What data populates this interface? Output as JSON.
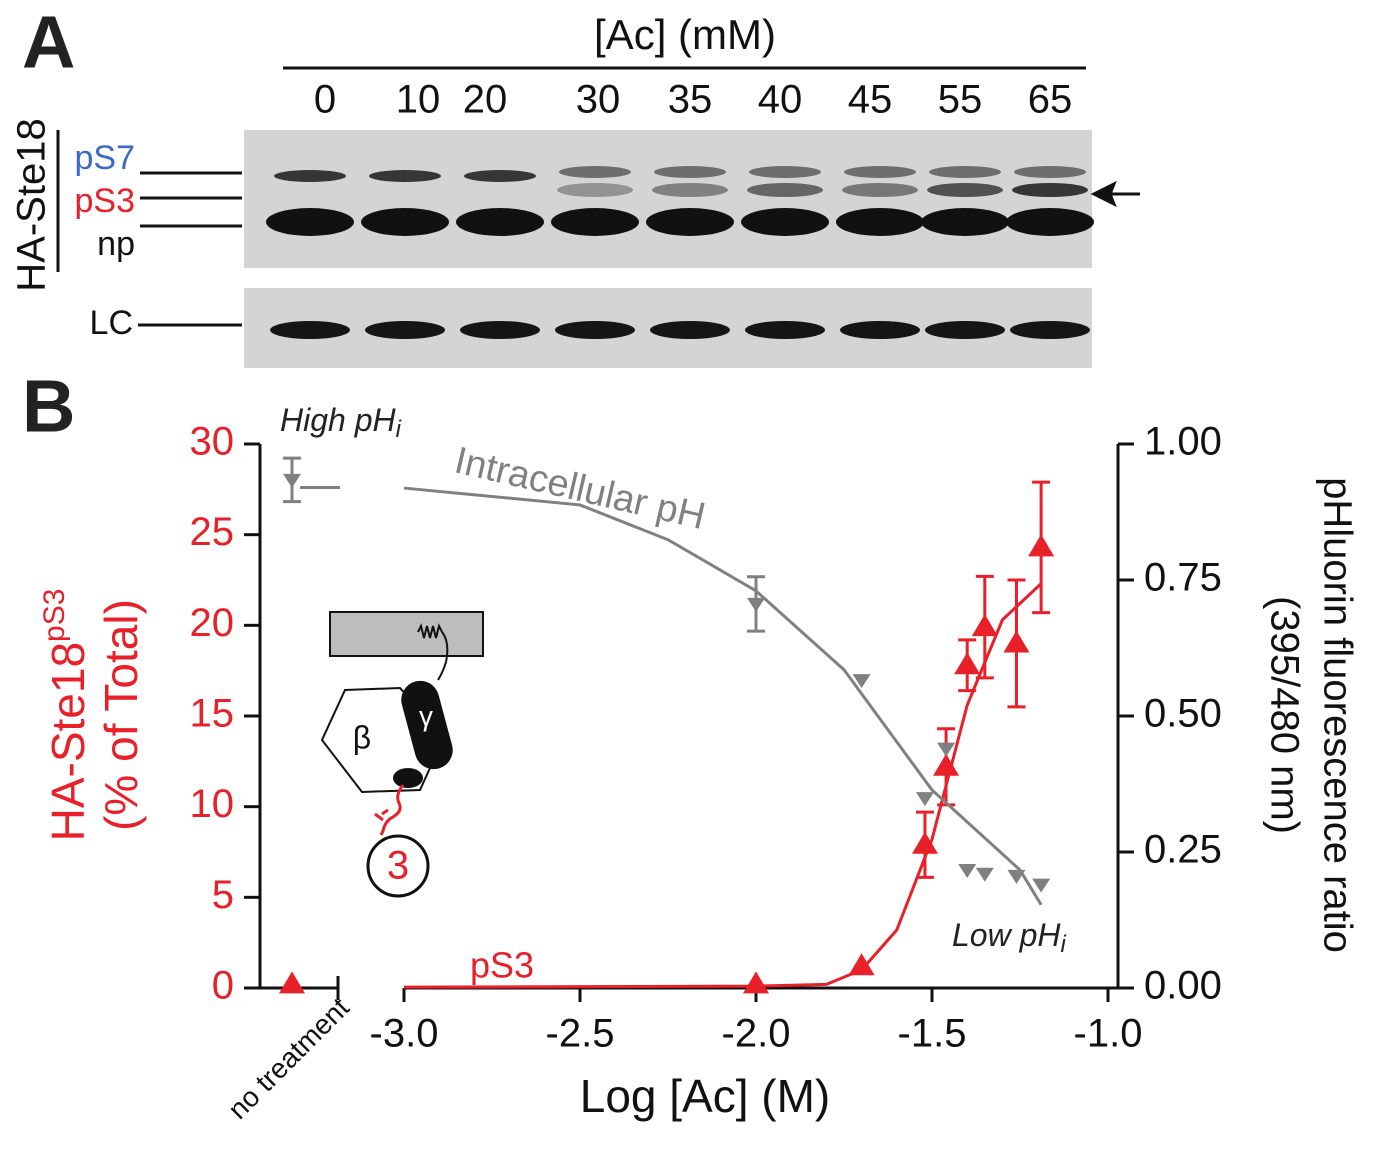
{
  "panel_a": {
    "label": "A",
    "title": "[Ac] (mM)",
    "lanes": [
      "0",
      "10",
      "20",
      "30",
      "35",
      "40",
      "45",
      "55",
      "65"
    ],
    "group_label": "HA-Ste18",
    "bands": [
      "pS7",
      "pS3",
      "np"
    ],
    "loading_label": "LC"
  },
  "inset": {
    "beta": "β",
    "gamma": "γ",
    "site": "3"
  },
  "chart_data": {
    "type": "scatter",
    "panel_label": "B",
    "x_label": "Log [Ac] (M)",
    "x_break_label": "no treatment",
    "y_label": {
      "text": "HA-Ste18",
      "sup": "pS3"
    },
    "y_label_2": "(% of Total)",
    "y2_label": "pHluorin fluorescence ratio",
    "y2_label_2": "(395/480 nm)",
    "xlim": [
      -3,
      -1
    ],
    "xticks": [
      {
        "value": -3,
        "label": "-3.0"
      },
      -2.5,
      {
        "value": -2,
        "label": "-2.0"
      },
      -1.5,
      {
        "value": -1,
        "label": "-1.0"
      }
    ],
    "ylim": [
      0,
      30
    ],
    "yticks": [
      0,
      5,
      10,
      15,
      20,
      25,
      30
    ],
    "y2lim": [
      0,
      1
    ],
    "y2ticks": [
      {
        "value": 0,
        "label": "0.00"
      },
      {
        "value": 0.25,
        "label": "0.25"
      },
      {
        "value": 0.5,
        "label": "0.50"
      },
      {
        "value": 0.75,
        "label": "0.75"
      },
      {
        "value": 1,
        "label": "1.00"
      }
    ],
    "series": [
      {
        "name": "pS3",
        "color": "#e8202a",
        "marker": "triangle-up",
        "x": [
          -2.0,
          -1.7,
          -1.52,
          -1.46,
          -1.4,
          -1.35,
          -1.26,
          -1.19
        ],
        "values": [
          0.2,
          1.2,
          7.9,
          12.2,
          17.8,
          19.9,
          19.0,
          24.3
        ],
        "errors": [
          null,
          null,
          1.8,
          2.1,
          1.4,
          2.8,
          3.5,
          3.6
        ],
        "no_treatment": 0.2,
        "fit_x": [
          -3.0,
          -2.0,
          -1.8,
          -1.7,
          -1.6,
          -1.5,
          -1.4,
          -1.3,
          -1.19
        ],
        "fit_values": [
          0.05,
          0.1,
          0.2,
          1.0,
          3.2,
          8.2,
          15.6,
          20.3,
          22.3
        ]
      },
      {
        "name": "Intracellular pH",
        "color": "#808080",
        "axis": "y2",
        "marker": "triangle-down",
        "x": [
          -2.0,
          -1.7,
          -1.52,
          -1.46,
          -1.4,
          -1.35,
          -1.26,
          -1.19
        ],
        "values": [
          0.706,
          0.566,
          0.349,
          0.44,
          0.217,
          0.21,
          0.206,
          0.19
        ],
        "errors": [
          0.05,
          null,
          null,
          null,
          null,
          null,
          null,
          null
        ],
        "no_treatment": 0.934,
        "no_treatment_error": 0.04,
        "no_treatment_fit": 0.92,
        "fit_x": [
          -3.0,
          -2.5,
          -2.25,
          -2.0,
          -1.75,
          -1.5,
          -1.25,
          -1.19
        ],
        "fit_values": [
          0.919,
          0.888,
          0.824,
          0.73,
          0.585,
          0.364,
          0.217,
          0.153
        ]
      }
    ],
    "annotations": [
      {
        "text": "High pH",
        "sub": "i"
      },
      {
        "text": "Low pH",
        "sub": "i"
      }
    ]
  }
}
